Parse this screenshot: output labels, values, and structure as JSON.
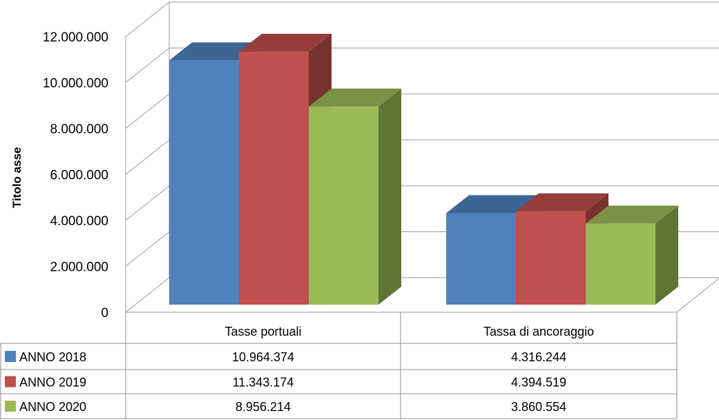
{
  "chart_data": {
    "type": "bar",
    "subtype": "3d-clustered-column-with-data-table",
    "ylabel": "Titolo asse",
    "ylim": [
      0,
      12000000
    ],
    "yticks": [
      "0",
      "2.000.000",
      "4.000.000",
      "6.000.000",
      "8.000.000",
      "10.000.000",
      "12.000.000"
    ],
    "grid": true,
    "categories": [
      "Tasse portuali",
      "Tassa di ancoraggio"
    ],
    "series": [
      {
        "name": "ANNO 2018",
        "color": "#4F81BD",
        "values": [
          10964374,
          4316244
        ],
        "labels": [
          "10.964.374",
          "4.316.244"
        ]
      },
      {
        "name": "ANNO 2019",
        "color": "#C0504D",
        "values": [
          11343174,
          4394519
        ],
        "labels": [
          "11.343.174",
          "4.394.519"
        ]
      },
      {
        "name": "ANNO 2020",
        "color": "#9BBB59",
        "values": [
          8956214,
          3860554
        ],
        "labels": [
          "8.956.214",
          "3.860.554"
        ]
      }
    ]
  }
}
